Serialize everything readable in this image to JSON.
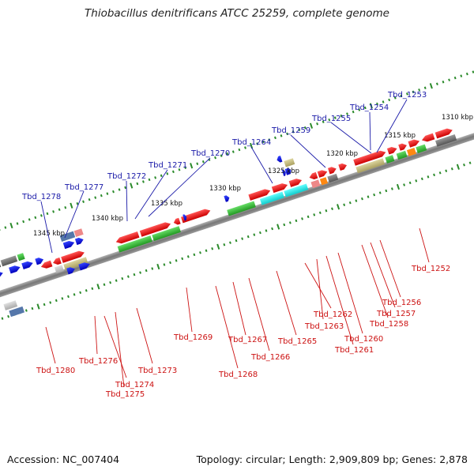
{
  "title": "Thiobacillus denitrificans ATCC 25259, complete genome",
  "footer": {
    "accession": "Accession: NC_007404",
    "topology": "Topology: circular; Length: 2,909,809 bp; Genes: 2,878"
  },
  "kbp_labels": [
    "1345 kbp",
    "1340 kbp",
    "1335 kbp",
    "1330 kbp",
    "1325 kbp",
    "1320 kbp",
    "1315 kbp",
    "1310 kbp"
  ],
  "gene_labels_top": [
    "Tbd_1278",
    "Tbd_1277",
    "Tbd_1272",
    "Tbd_1271",
    "Tbd_1270",
    "Tbd_1264",
    "Tbd_1259",
    "Tbd_1255",
    "Tbd_1254",
    "Tbd_1253"
  ],
  "gene_labels_bottom": [
    "Tbd_1280",
    "Tbd_1276",
    "Tbd_1274",
    "Tbd_1275",
    "Tbd_1273",
    "Tbd_1269",
    "Tbd_1268",
    "Tbd_1267",
    "Tbd_1266",
    "Tbd_1265",
    "Tbd_1262",
    "Tbd_1263",
    "Tbd_1260",
    "Tbd_1261",
    "Tbd_1258",
    "Tbd_1257",
    "Tbd_1256",
    "Tbd_1252"
  ],
  "colors": {
    "backbone": "#8a8a8a",
    "label_top": "#1a1aa8",
    "label_bottom": "#cc1111",
    "gene_red": "#ee1111",
    "gene_green": "#33bb33",
    "gene_blue": "#1111dd",
    "gene_cyan": "#11dddd",
    "gene_grey": "#777777",
    "gene_olive": "#c8c080",
    "gene_orange": "#ff8811",
    "tick_green": "#2a8a2a"
  }
}
